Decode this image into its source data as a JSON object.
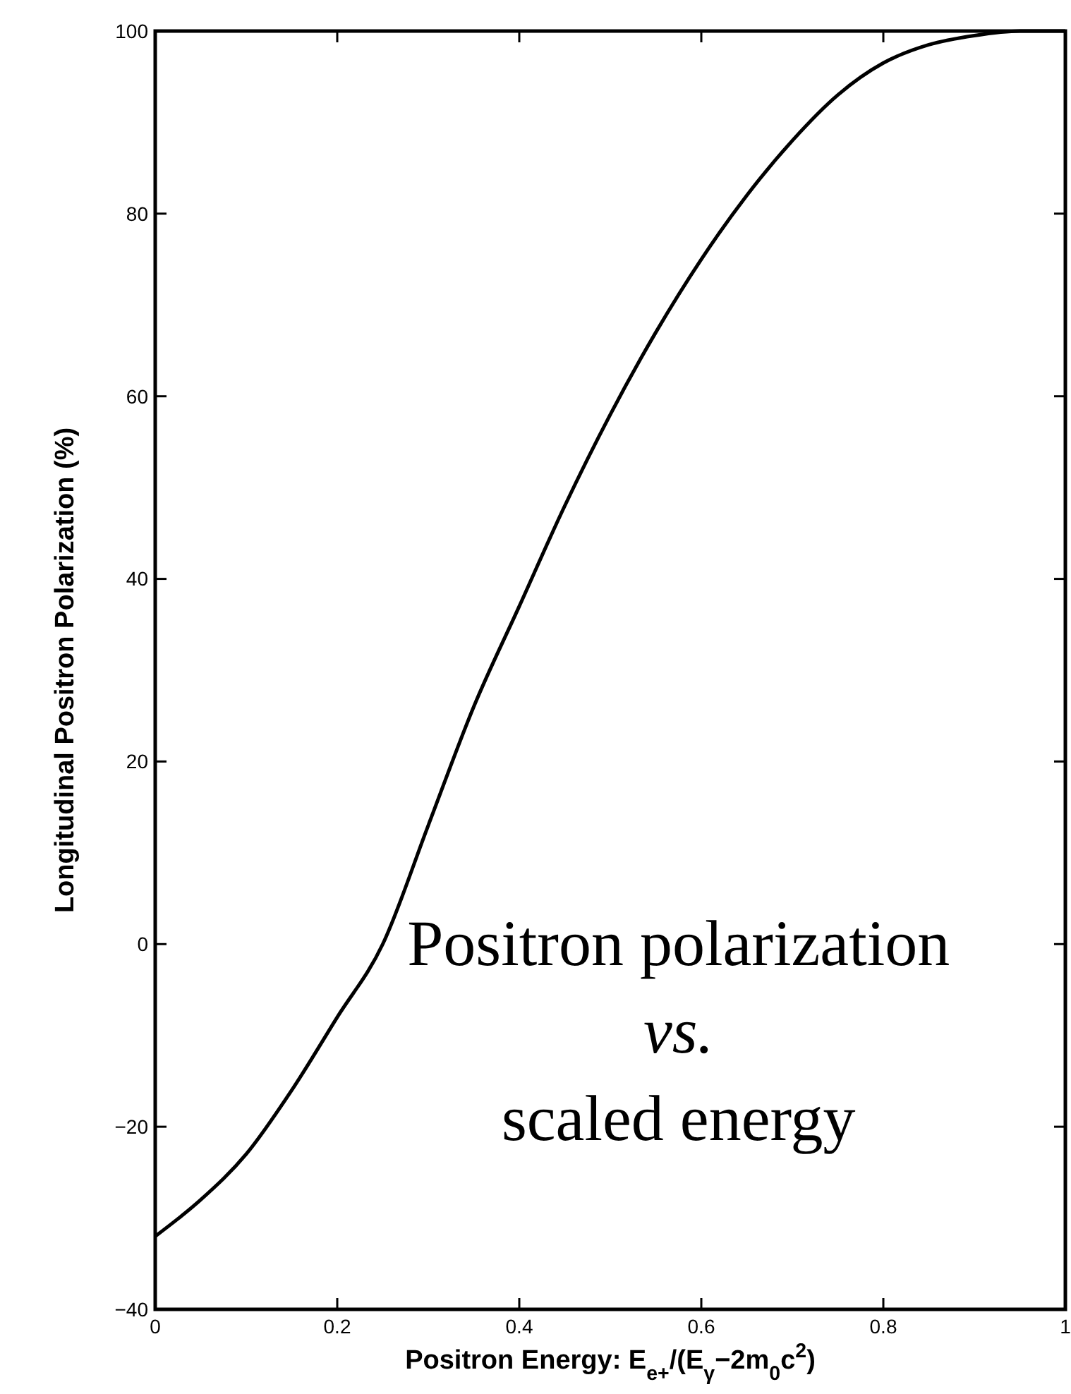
{
  "chart_data": {
    "type": "line",
    "xlabel": "Positron Energy: E$_{e+}$/(E$_{γ}$−2m$_{0}$c$^{2}$)",
    "ylabel": "Longitudinal Positron Polarization (%)",
    "x": [
      0,
      0.05,
      0.1,
      0.15,
      0.2,
      0.25,
      0.3,
      0.35,
      0.4,
      0.45,
      0.5,
      0.55,
      0.6,
      0.65,
      0.7,
      0.75,
      0.8,
      0.85,
      0.9,
      0.95,
      1
    ],
    "series": [
      {
        "color": "#000000",
        "values": [
          -32,
          -28,
          -23,
          -16,
          -8,
          0,
          13,
          26,
          37,
          48,
          58,
          67,
          75,
          82,
          88,
          93,
          96.5,
          98.5,
          99.5,
          100,
          100
        ]
      }
    ],
    "xlim": [
      0,
      1
    ],
    "xticks": [
      0,
      0.2,
      0.4,
      0.6,
      0.8,
      1
    ],
    "ylim": [
      -40,
      100
    ],
    "yticks": [
      {
        "value": -40,
        "label": "−40"
      },
      {
        "value": -20,
        "label": "−20"
      },
      0,
      20,
      40,
      60,
      80,
      100
    ],
    "annotations": [
      "Positron polarization",
      "vs.",
      "scaled energy"
    ],
    "grid": false,
    "marker": "none",
    "line_style": "solid"
  }
}
